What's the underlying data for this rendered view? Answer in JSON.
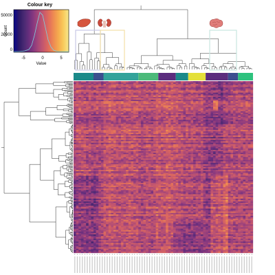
{
  "colour_key": {
    "title": "Colour key",
    "xlabel": "Value",
    "ylabel": "Count",
    "x_ticks": [
      "-5",
      "0",
      "5"
    ],
    "y_ticks": [
      "0",
      "20000",
      "50000"
    ]
  },
  "palette": [
    "#0d0887",
    "#2f1a66",
    "#4a2a73",
    "#6a2f7e",
    "#8b3a7f",
    "#ac4a78",
    "#c8596c",
    "#e06c5c",
    "#ee8a52",
    "#f5aa4e",
    "#f8c95a",
    "#f7e486"
  ],
  "tissue_colors": [
    "#1b8a8a",
    "#33a39a",
    "#4cba7a",
    "#3b4f8f",
    "#5b2d7e",
    "#e4e03a",
    "#2ec27e",
    "#7ad151",
    "#0f7a78"
  ],
  "organ_icons": [
    "liver-icon",
    "kidney-icon",
    "brain-icon"
  ],
  "chart_data": {
    "type": "heatmap",
    "title": "",
    "xlabel": "",
    "ylabel": "",
    "value_range": [
      -7,
      7
    ],
    "n_columns": 72,
    "n_rows": "many (row dendrogram dense)",
    "column_dendrogram": true,
    "row_dendrogram": true,
    "column_color_bar": true,
    "colormap": "magma-like (dark purple low to light yellow high)"
  }
}
